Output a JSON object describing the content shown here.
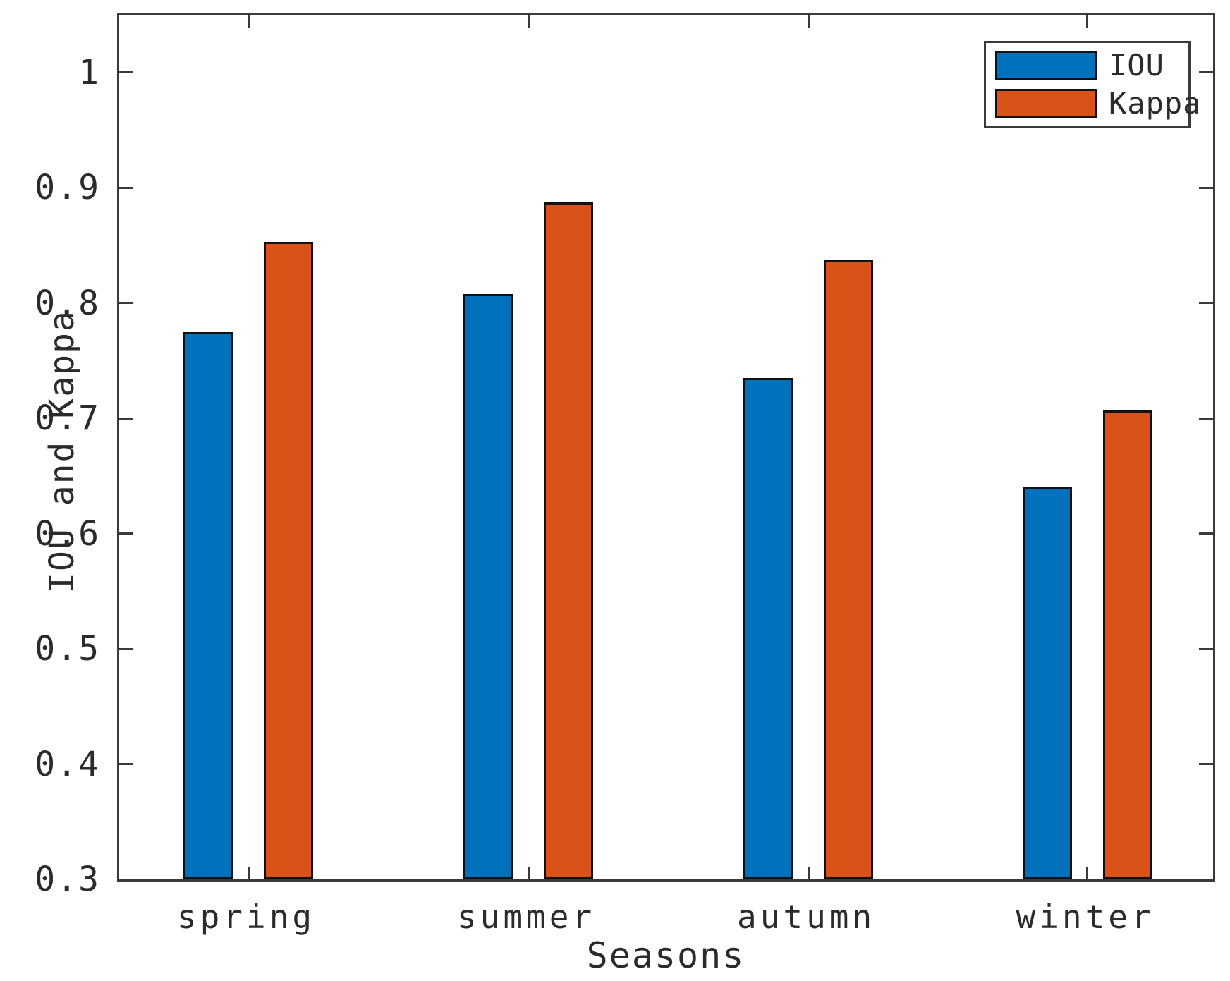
{
  "figure": {
    "background": "#ffffff",
    "axis_color": "#3a3a3a",
    "text_color": "#2b2b2b"
  },
  "chart_data": {
    "type": "bar",
    "categories": [
      "spring",
      "summer",
      "autumn",
      "winter"
    ],
    "series": [
      {
        "name": "IOU",
        "color": "#0072BD",
        "values": [
          0.775,
          0.808,
          0.735,
          0.64
        ]
      },
      {
        "name": "Kappa",
        "color": "#D95319",
        "values": [
          0.853,
          0.887,
          0.837,
          0.707
        ]
      }
    ],
    "title": "",
    "xlabel": "Seasons",
    "ylabel": "IOU and Kappa",
    "ylim": [
      0.3,
      1.05
    ],
    "ytick_values": [
      0.3,
      0.4,
      0.5,
      0.6,
      0.7,
      0.8,
      0.9,
      1.0
    ],
    "ytick_labels": [
      "0.3",
      "0.4",
      "0.5",
      "0.6",
      "0.7",
      "0.8",
      "0.9",
      "1"
    ],
    "grid": false,
    "bar_edge_color": "#111111",
    "legend": {
      "position": "top-right",
      "entries": [
        "IOU",
        "Kappa"
      ]
    }
  }
}
